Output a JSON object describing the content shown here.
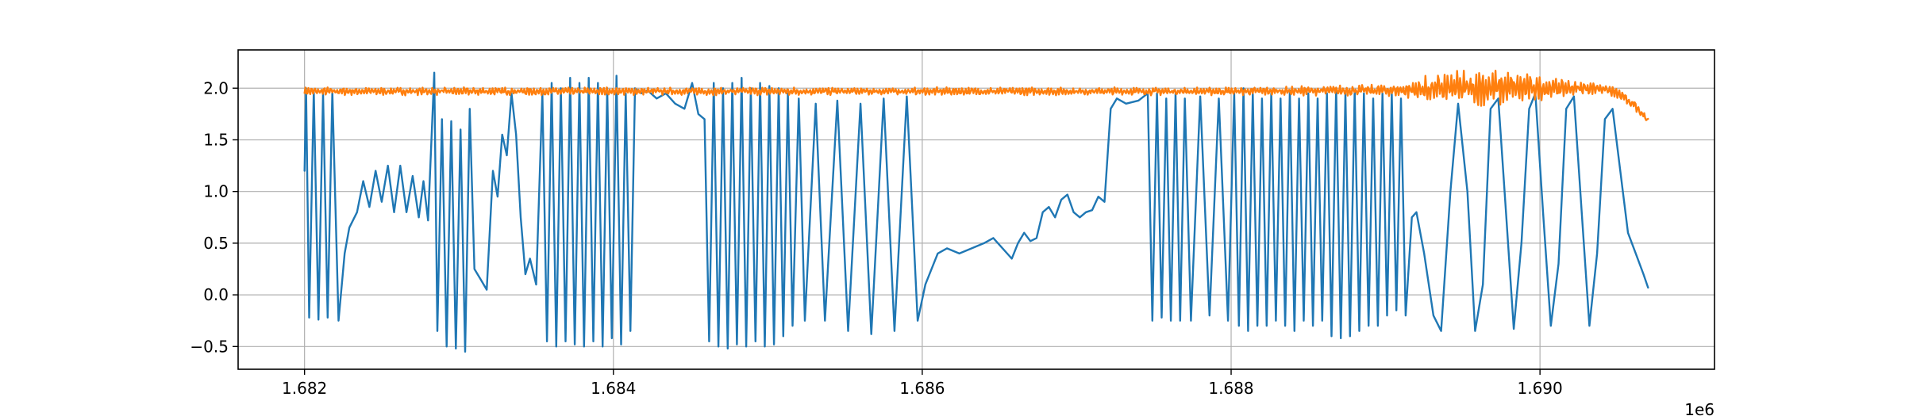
{
  "chart_data": {
    "type": "line",
    "title": "",
    "xlabel": "",
    "ylabel": "",
    "x_offset_label": "1e6",
    "xlim": [
      1.68157,
      1.69113
    ],
    "ylim": [
      -0.72,
      2.37
    ],
    "xticks": [
      1.682,
      1.684,
      1.686,
      1.688,
      1.69
    ],
    "xtick_labels": [
      "1.682",
      "1.684",
      "1.686",
      "1.688",
      "1.690"
    ],
    "yticks": [
      -0.5,
      0.0,
      0.5,
      1.0,
      1.5,
      2.0
    ],
    "ytick_labels": [
      "−0.5",
      "0.0",
      "0.5",
      "1.0",
      "1.5",
      "2.0"
    ],
    "grid": true,
    "legend": "none",
    "series": [
      {
        "color": "#1f77b4",
        "points": [
          [
            1.682,
            1.2
          ],
          [
            1.68201,
            2.0
          ],
          [
            1.68203,
            -0.22
          ],
          [
            1.68206,
            1.98
          ],
          [
            1.68209,
            -0.24
          ],
          [
            1.68212,
            1.95
          ],
          [
            1.68215,
            -0.22
          ],
          [
            1.68218,
            1.97
          ],
          [
            1.68222,
            -0.25
          ],
          [
            1.68226,
            0.4
          ],
          [
            1.68229,
            0.65
          ],
          [
            1.68234,
            0.8
          ],
          [
            1.68238,
            1.1
          ],
          [
            1.68242,
            0.85
          ],
          [
            1.68246,
            1.2
          ],
          [
            1.6825,
            0.9
          ],
          [
            1.68254,
            1.25
          ],
          [
            1.68258,
            0.8
          ],
          [
            1.68262,
            1.25
          ],
          [
            1.68266,
            0.8
          ],
          [
            1.6827,
            1.15
          ],
          [
            1.68274,
            0.75
          ],
          [
            1.68277,
            1.1
          ],
          [
            1.6828,
            0.72
          ],
          [
            1.68284,
            2.15
          ],
          [
            1.68286,
            -0.35
          ],
          [
            1.68289,
            1.7
          ],
          [
            1.68292,
            -0.5
          ],
          [
            1.68295,
            1.68
          ],
          [
            1.68298,
            -0.52
          ],
          [
            1.68301,
            1.6
          ],
          [
            1.68304,
            -0.55
          ],
          [
            1.68307,
            1.8
          ],
          [
            1.6831,
            0.25
          ],
          [
            1.68314,
            0.15
          ],
          [
            1.68318,
            0.05
          ],
          [
            1.68322,
            1.2
          ],
          [
            1.68325,
            0.95
          ],
          [
            1.68328,
            1.55
          ],
          [
            1.68331,
            1.35
          ],
          [
            1.68334,
            1.95
          ],
          [
            1.68337,
            1.55
          ],
          [
            1.6834,
            0.75
          ],
          [
            1.68343,
            0.2
          ],
          [
            1.68346,
            0.35
          ],
          [
            1.6835,
            0.1
          ],
          [
            1.68354,
            1.95
          ],
          [
            1.68357,
            -0.45
          ],
          [
            1.6836,
            2.05
          ],
          [
            1.68363,
            -0.5
          ],
          [
            1.68366,
            2.0
          ],
          [
            1.68369,
            -0.45
          ],
          [
            1.68372,
            2.1
          ],
          [
            1.68375,
            -0.48
          ],
          [
            1.68378,
            2.05
          ],
          [
            1.68381,
            -0.5
          ],
          [
            1.68384,
            2.1
          ],
          [
            1.68387,
            -0.45
          ],
          [
            1.6839,
            2.05
          ],
          [
            1.68393,
            -0.5
          ],
          [
            1.68396,
            2.0
          ],
          [
            1.68399,
            -0.42
          ],
          [
            1.68402,
            2.12
          ],
          [
            1.68405,
            -0.48
          ],
          [
            1.68408,
            1.95
          ],
          [
            1.68411,
            -0.35
          ],
          [
            1.68414,
            2.0
          ],
          [
            1.68418,
            1.95
          ],
          [
            1.68422,
            1.98
          ],
          [
            1.68428,
            1.9
          ],
          [
            1.68434,
            1.95
          ],
          [
            1.6844,
            1.85
          ],
          [
            1.68446,
            1.8
          ],
          [
            1.68451,
            2.05
          ],
          [
            1.68455,
            1.75
          ],
          [
            1.68459,
            1.7
          ],
          [
            1.68462,
            -0.45
          ],
          [
            1.68465,
            2.05
          ],
          [
            1.68468,
            -0.5
          ],
          [
            1.68471,
            2.0
          ],
          [
            1.68474,
            -0.52
          ],
          [
            1.68477,
            2.05
          ],
          [
            1.6848,
            -0.48
          ],
          [
            1.68483,
            2.1
          ],
          [
            1.68486,
            -0.5
          ],
          [
            1.68489,
            2.0
          ],
          [
            1.68492,
            -0.45
          ],
          [
            1.68495,
            2.05
          ],
          [
            1.68498,
            -0.5
          ],
          [
            1.68501,
            2.02
          ],
          [
            1.68504,
            -0.48
          ],
          [
            1.68507,
            2.0
          ],
          [
            1.6851,
            -0.4
          ],
          [
            1.68513,
            1.95
          ],
          [
            1.68516,
            -0.3
          ],
          [
            1.6852,
            1.9
          ],
          [
            1.68524,
            -0.25
          ],
          [
            1.68531,
            1.85
          ],
          [
            1.68537,
            -0.25
          ],
          [
            1.68545,
            1.88
          ],
          [
            1.68552,
            -0.35
          ],
          [
            1.6856,
            1.85
          ],
          [
            1.68567,
            -0.38
          ],
          [
            1.68575,
            1.9
          ],
          [
            1.68582,
            -0.35
          ],
          [
            1.6859,
            1.92
          ],
          [
            1.68597,
            -0.25
          ],
          [
            1.68602,
            0.1
          ],
          [
            1.6861,
            0.4
          ],
          [
            1.68616,
            0.45
          ],
          [
            1.68624,
            0.4
          ],
          [
            1.68632,
            0.45
          ],
          [
            1.6864,
            0.5
          ],
          [
            1.68646,
            0.55
          ],
          [
            1.68652,
            0.45
          ],
          [
            1.68658,
            0.35
          ],
          [
            1.68662,
            0.5
          ],
          [
            1.68666,
            0.6
          ],
          [
            1.6867,
            0.52
          ],
          [
            1.68674,
            0.55
          ],
          [
            1.68678,
            0.8
          ],
          [
            1.68682,
            0.85
          ],
          [
            1.68686,
            0.75
          ],
          [
            1.6869,
            0.92
          ],
          [
            1.68694,
            0.97
          ],
          [
            1.68698,
            0.8
          ],
          [
            1.68702,
            0.75
          ],
          [
            1.68706,
            0.8
          ],
          [
            1.6871,
            0.82
          ],
          [
            1.68714,
            0.95
          ],
          [
            1.68718,
            0.9
          ],
          [
            1.68722,
            1.8
          ],
          [
            1.68726,
            1.9
          ],
          [
            1.68732,
            1.85
          ],
          [
            1.6874,
            1.88
          ],
          [
            1.68746,
            1.95
          ],
          [
            1.68749,
            -0.25
          ],
          [
            1.68752,
            1.95
          ],
          [
            1.68755,
            -0.22
          ],
          [
            1.68758,
            1.9
          ],
          [
            1.68761,
            -0.25
          ],
          [
            1.68764,
            1.95
          ],
          [
            1.68767,
            -0.25
          ],
          [
            1.6877,
            1.9
          ],
          [
            1.68774,
            -0.25
          ],
          [
            1.6878,
            1.92
          ],
          [
            1.68786,
            -0.2
          ],
          [
            1.68792,
            1.9
          ],
          [
            1.68798,
            -0.25
          ],
          [
            1.68802,
            1.95
          ],
          [
            1.68805,
            -0.3
          ],
          [
            1.68808,
            2.0
          ],
          [
            1.68811,
            -0.35
          ],
          [
            1.68814,
            1.95
          ],
          [
            1.68817,
            -0.3
          ],
          [
            1.6882,
            1.9
          ],
          [
            1.68823,
            -0.3
          ],
          [
            1.68826,
            1.95
          ],
          [
            1.68829,
            -0.25
          ],
          [
            1.68832,
            1.9
          ],
          [
            1.68835,
            -0.3
          ],
          [
            1.68838,
            1.98
          ],
          [
            1.68841,
            -0.35
          ],
          [
            1.68844,
            1.9
          ],
          [
            1.68847,
            -0.25
          ],
          [
            1.6885,
            1.95
          ],
          [
            1.68853,
            -0.3
          ],
          [
            1.68856,
            1.9
          ],
          [
            1.68859,
            -0.25
          ],
          [
            1.68862,
            1.95
          ],
          [
            1.68865,
            -0.4
          ],
          [
            1.68868,
            2.0
          ],
          [
            1.68871,
            -0.42
          ],
          [
            1.68874,
            1.95
          ],
          [
            1.68877,
            -0.4
          ],
          [
            1.6888,
            1.98
          ],
          [
            1.68883,
            -0.35
          ],
          [
            1.68886,
            1.95
          ],
          [
            1.68889,
            -0.3
          ],
          [
            1.68892,
            1.9
          ],
          [
            1.68895,
            -0.3
          ],
          [
            1.68898,
            1.95
          ],
          [
            1.68901,
            -0.2
          ],
          [
            1.68904,
            1.95
          ],
          [
            1.68907,
            -0.15
          ],
          [
            1.6891,
            1.9
          ],
          [
            1.68913,
            -0.2
          ],
          [
            1.68917,
            0.75
          ],
          [
            1.6892,
            0.8
          ],
          [
            1.68925,
            0.4
          ],
          [
            1.68931,
            -0.2
          ],
          [
            1.68936,
            -0.35
          ],
          [
            1.68942,
            1.0
          ],
          [
            1.68947,
            1.85
          ],
          [
            1.68953,
            1.0
          ],
          [
            1.68958,
            -0.35
          ],
          [
            1.68963,
            0.1
          ],
          [
            1.68968,
            1.8
          ],
          [
            1.68973,
            1.9
          ],
          [
            1.68978,
            0.8
          ],
          [
            1.68983,
            -0.33
          ],
          [
            1.68988,
            0.5
          ],
          [
            1.68993,
            1.8
          ],
          [
            1.68997,
            1.95
          ],
          [
            1.69002,
            0.8
          ],
          [
            1.69007,
            -0.3
          ],
          [
            1.69012,
            0.3
          ],
          [
            1.69017,
            1.8
          ],
          [
            1.69022,
            1.92
          ],
          [
            1.69027,
            0.8
          ],
          [
            1.69032,
            -0.3
          ],
          [
            1.69037,
            0.4
          ],
          [
            1.69042,
            1.7
          ],
          [
            1.69047,
            1.8
          ],
          [
            1.69052,
            1.2
          ],
          [
            1.69057,
            0.6
          ],
          [
            1.69062,
            0.4
          ],
          [
            1.69067,
            0.2
          ],
          [
            1.6907,
            0.07
          ]
        ]
      },
      {
        "color": "#ff7f0e",
        "band_start": 1.682,
        "band_end": 1.6907,
        "mean_points": [
          [
            1.682,
            1.97
          ],
          [
            1.685,
            1.97
          ],
          [
            1.688,
            1.97
          ],
          [
            1.6891,
            1.98
          ],
          [
            1.6895,
            2.0
          ],
          [
            1.69,
            2.0
          ],
          [
            1.6904,
            2.0
          ],
          [
            1.6905,
            1.95
          ],
          [
            1.6906,
            1.85
          ],
          [
            1.6907,
            1.68
          ]
        ],
        "amplitude_points": [
          [
            1.682,
            0.04
          ],
          [
            1.688,
            0.04
          ],
          [
            1.6891,
            0.06
          ],
          [
            1.6893,
            0.16
          ],
          [
            1.6896,
            0.2
          ],
          [
            1.6899,
            0.15
          ],
          [
            1.6902,
            0.08
          ],
          [
            1.6905,
            0.05
          ],
          [
            1.6907,
            0.05
          ]
        ]
      }
    ]
  }
}
